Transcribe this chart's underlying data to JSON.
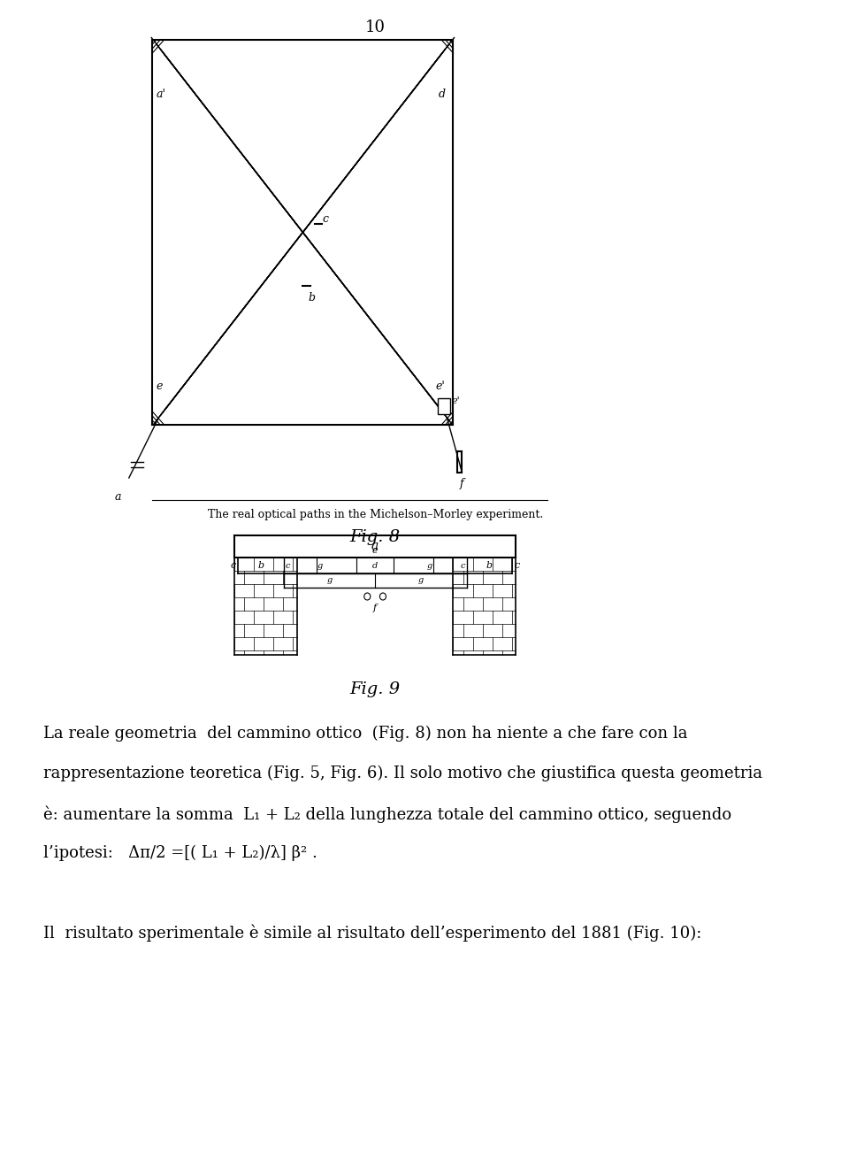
{
  "page_number": "10",
  "background_color": "#ffffff",
  "fig8_caption": "The real optical paths in the Michelson–Morley experiment.",
  "fig8_label": "Fig. 8",
  "fig9_label": "Fig. 9",
  "text_lines": [
    "La reale geometria  del cammino ottico  (Fig. 8) non ha niente a che fare con la",
    "rappresentazione teoretica (Fig. 5, Fig. 6). Il solo motivo che giustifica questa geometria",
    "è: aumentare la somma  L₁ + L₂ della lunghezza totale del cammino ottico, seguendo",
    "l’ipotesi:   Δπ/2 =[( L₁ + L₂)/λ] β² .",
    "",
    "Il  risultato sperimentale è simile al risultato dell’esperimento del 1881 (Fig. 10):"
  ]
}
